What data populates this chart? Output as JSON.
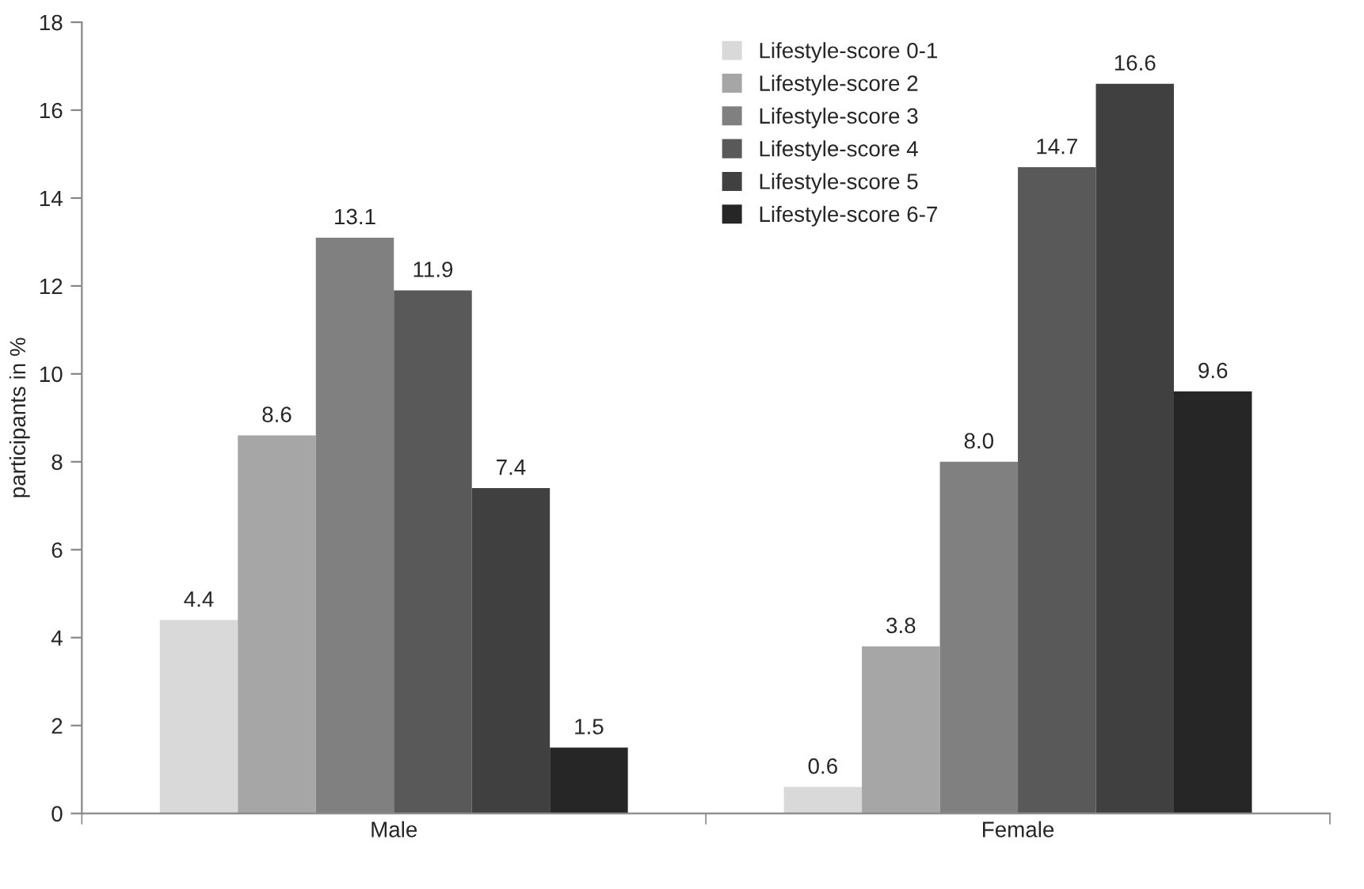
{
  "chart_data": {
    "type": "bar",
    "ylabel": "participants in %",
    "categories": [
      "Male",
      "Female"
    ],
    "series": [
      {
        "name": "Lifestyle-score 0-1",
        "color": "#d9d9d9",
        "values": [
          4.4,
          0.6
        ],
        "value_labels": [
          "4.4",
          "0.6"
        ]
      },
      {
        "name": "Lifestyle-score 2",
        "color": "#a6a6a6",
        "values": [
          8.6,
          3.8
        ],
        "value_labels": [
          "8.6",
          "3.8"
        ]
      },
      {
        "name": "Lifestyle-score 3",
        "color": "#808080",
        "values": [
          13.1,
          8
        ],
        "value_labels": [
          "13.1",
          "8.0"
        ]
      },
      {
        "name": "Lifestyle-score 4",
        "color": "#595959",
        "values": [
          11.9,
          14.7
        ],
        "value_labels": [
          "11.9",
          "14.7"
        ]
      },
      {
        "name": "Lifestyle-score 5",
        "color": "#404040",
        "values": [
          7.4,
          16.6
        ],
        "value_labels": [
          "7.4",
          "16.6"
        ]
      },
      {
        "name": "Lifestyle-score 6-7",
        "color": "#262626",
        "values": [
          1.5,
          9.6
        ],
        "value_labels": [
          "1.5",
          "9.6"
        ]
      }
    ],
    "ylim": [
      0,
      18
    ],
    "yticks": [
      0,
      2,
      4,
      6,
      8,
      10,
      12,
      14,
      16,
      18
    ],
    "grid": false,
    "legend": "top"
  }
}
